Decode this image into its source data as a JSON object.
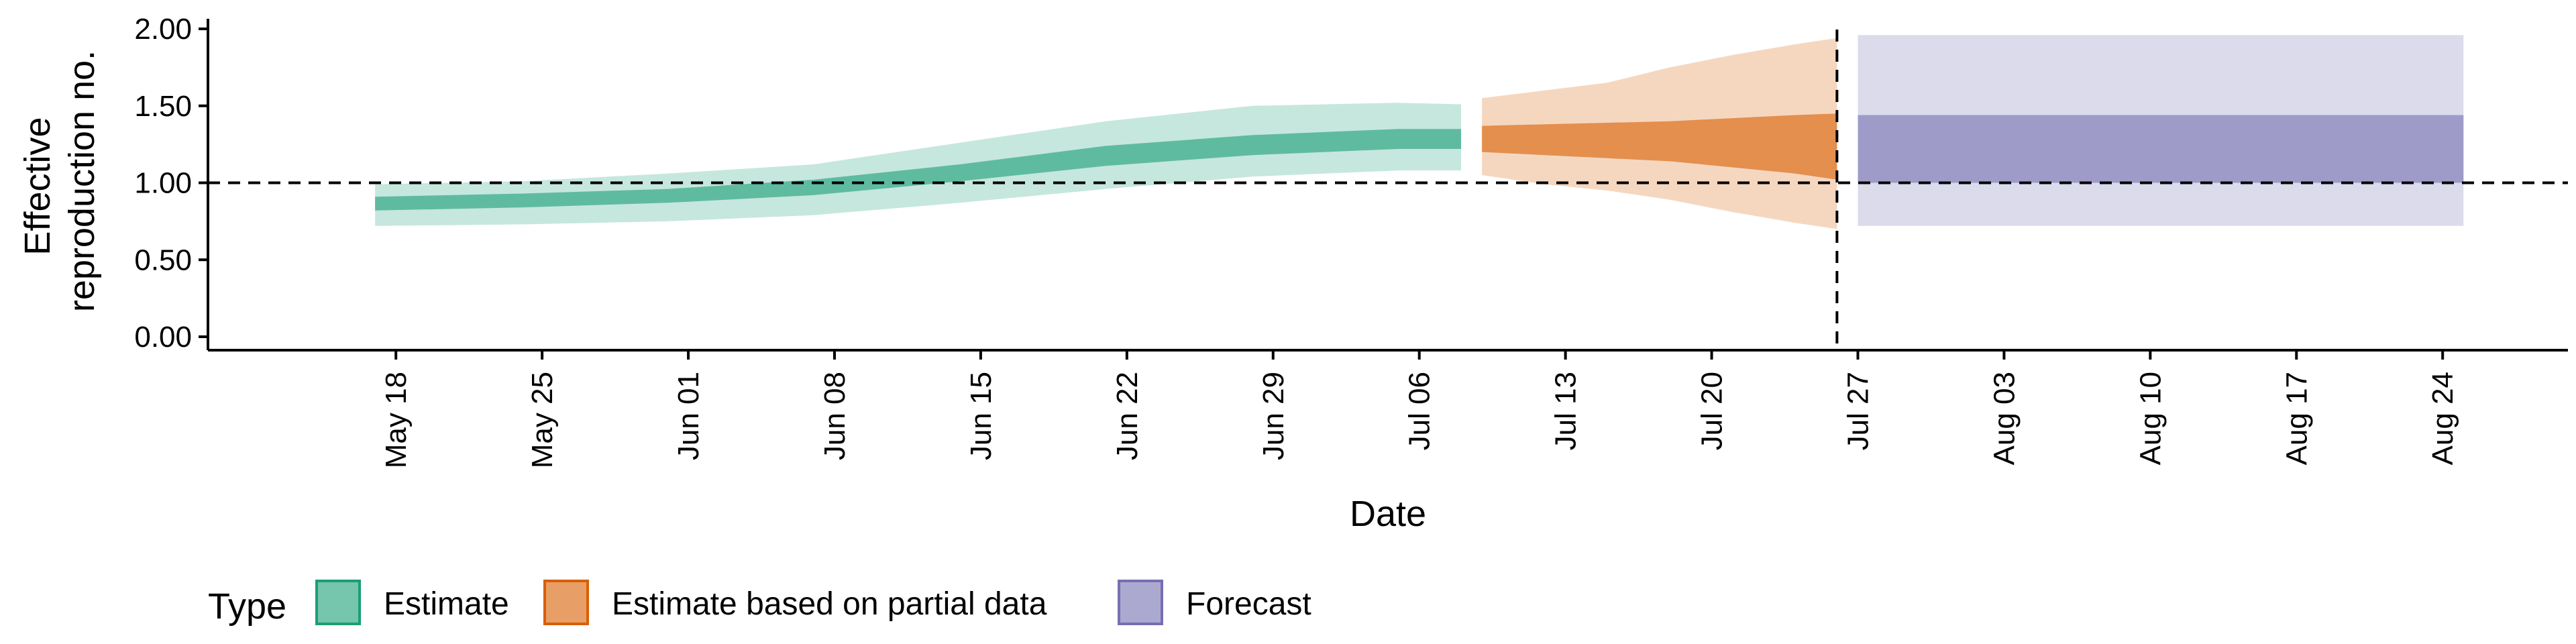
{
  "chart_data": {
    "type": "area",
    "xlabel": "Date",
    "ylabel": [
      "Effective",
      "reproduction no."
    ],
    "x_ticks": [
      "May 18",
      "May 25",
      "Jun 01",
      "Jun 08",
      "Jun 15",
      "Jun 22",
      "Jun 29",
      "Jul 06",
      "Jul 13",
      "Jul 20",
      "Jul 27",
      "Aug 03",
      "Aug 10",
      "Aug 17",
      "Aug 24"
    ],
    "y_ticks": [
      "0.00",
      "0.50",
      "1.00",
      "1.50",
      "2.00"
    ],
    "ylim": [
      0,
      2
    ],
    "xlim": [
      "2020-05-09",
      "2020-08-30"
    ],
    "reference_lines": {
      "y": 1.0,
      "x": "2020-07-26"
    },
    "legend_title": "Type",
    "legend_position": "bottom",
    "series": [
      {
        "name": "Estimate",
        "color": "#1b9e77",
        "points": [
          {
            "date": "2020-05-17",
            "lo90": 0.72,
            "lo50": 0.82,
            "hi50": 0.91,
            "hi90": 0.99
          },
          {
            "date": "2020-05-24",
            "lo90": 0.73,
            "lo50": 0.84,
            "hi50": 0.93,
            "hi90": 1.01
          },
          {
            "date": "2020-05-31",
            "lo90": 0.75,
            "lo50": 0.87,
            "hi50": 0.96,
            "hi90": 1.06
          },
          {
            "date": "2020-06-07",
            "lo90": 0.79,
            "lo50": 0.92,
            "hi50": 1.02,
            "hi90": 1.12
          },
          {
            "date": "2020-06-14",
            "lo90": 0.87,
            "lo50": 1.01,
            "hi50": 1.12,
            "hi90": 1.26
          },
          {
            "date": "2020-06-21",
            "lo90": 0.96,
            "lo50": 1.11,
            "hi50": 1.24,
            "hi90": 1.4
          },
          {
            "date": "2020-06-28",
            "lo90": 1.04,
            "lo50": 1.18,
            "hi50": 1.31,
            "hi90": 1.5
          },
          {
            "date": "2020-07-05",
            "lo90": 1.08,
            "lo50": 1.22,
            "hi50": 1.35,
            "hi90": 1.52
          },
          {
            "date": "2020-07-08",
            "lo90": 1.08,
            "lo50": 1.22,
            "hi50": 1.35,
            "hi90": 1.51
          }
        ]
      },
      {
        "name": "Estimate based on partial data",
        "color": "#d95f02",
        "points": [
          {
            "date": "2020-07-09",
            "lo90": 1.05,
            "lo50": 1.2,
            "hi50": 1.37,
            "hi90": 1.55
          },
          {
            "date": "2020-07-12",
            "lo90": 0.99,
            "lo50": 1.18,
            "hi50": 1.38,
            "hi90": 1.6
          },
          {
            "date": "2020-07-15",
            "lo90": 0.95,
            "lo50": 1.16,
            "hi50": 1.39,
            "hi90": 1.65
          },
          {
            "date": "2020-07-18",
            "lo90": 0.89,
            "lo50": 1.14,
            "hi50": 1.4,
            "hi90": 1.75
          },
          {
            "date": "2020-07-21",
            "lo90": 0.81,
            "lo50": 1.1,
            "hi50": 1.42,
            "hi90": 1.83
          },
          {
            "date": "2020-07-24",
            "lo90": 0.74,
            "lo50": 1.06,
            "hi50": 1.44,
            "hi90": 1.9
          },
          {
            "date": "2020-07-26",
            "lo90": 0.7,
            "lo50": 1.02,
            "hi50": 1.45,
            "hi90": 1.94
          }
        ]
      },
      {
        "name": "Forecast",
        "color": "#7570b3",
        "points": [
          {
            "date": "2020-07-27",
            "lo90": 0.72,
            "lo50": 1.0,
            "hi50": 1.44,
            "hi90": 1.96
          },
          {
            "date": "2020-08-25",
            "lo90": 0.72,
            "lo50": 1.0,
            "hi50": 1.44,
            "hi90": 1.96
          }
        ]
      }
    ]
  }
}
